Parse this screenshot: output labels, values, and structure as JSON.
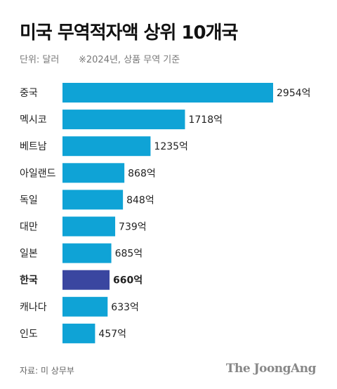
{
  "header": {
    "title": "미국 무역적자액 상위 10개국",
    "unit": "단위: 달러",
    "note": "※2024년, 상품 무역 기준"
  },
  "footer": {
    "source": "자료: 미 상무부",
    "brand": "The JoongAng"
  },
  "colors": {
    "bar": "#0fa3d6",
    "highlight": "#3a46a0"
  },
  "chart_data": {
    "type": "bar",
    "orientation": "horizontal",
    "categories": [
      "중국",
      "멕시코",
      "베트남",
      "아일랜드",
      "독일",
      "대만",
      "일본",
      "한국",
      "캐나다",
      "인도"
    ],
    "values": [
      2954,
      1718,
      1235,
      868,
      848,
      739,
      685,
      660,
      633,
      457
    ],
    "value_labels": [
      "2954억",
      "1718억",
      "1235억",
      "868억",
      "848억",
      "739억",
      "685억",
      "660억",
      "633억",
      "457억"
    ],
    "highlight": "한국",
    "title": "미국 무역적자액 상위 10개국",
    "xlabel": "",
    "ylabel": "",
    "xlim": [
      0,
      2954
    ],
    "grid": false,
    "legend": "none"
  }
}
